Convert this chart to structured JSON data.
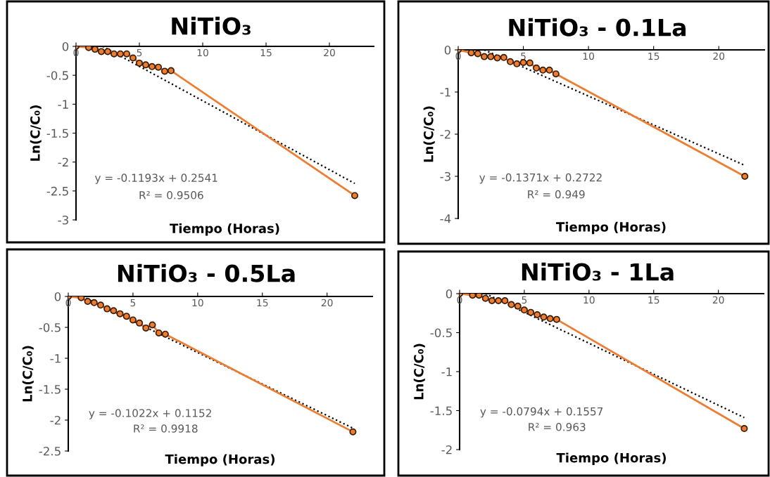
{
  "chart_data": [
    {
      "type": "line",
      "title": "NiTiO₃",
      "xlabel": "Tiempo (Horas)",
      "ylabel": "Ln(C/C₀)",
      "xlim": [
        0,
        23.5
      ],
      "xticks": [
        0,
        5,
        10,
        15,
        20
      ],
      "ylim": [
        -3,
        0
      ],
      "yticks": [
        0,
        -0.5,
        -1,
        -1.5,
        -2,
        -2.5,
        -3
      ],
      "grid": false,
      "legend": false,
      "annotations": [
        "y = -0.1193x + 0.2541",
        "R² = 0.9506"
      ],
      "series": [
        {
          "color": "#ed7d31",
          "marker": "circle",
          "line_style": "solid",
          "x": [
            0,
            1,
            1.5,
            2,
            2.5,
            3,
            3.5,
            4,
            4.5,
            5,
            5.5,
            6,
            6.5,
            7,
            7.5,
            22
          ],
          "values": [
            0,
            -0.02,
            -0.05,
            -0.09,
            -0.09,
            -0.13,
            -0.13,
            -0.13,
            -0.2,
            -0.29,
            -0.32,
            -0.35,
            -0.36,
            -0.43,
            -0.42,
            -2.58
          ]
        },
        {
          "color": "#000000",
          "marker": "none",
          "line_style": "dotted",
          "x": [
            2.1,
            22
          ],
          "values": [
            0,
            -2.37
          ]
        }
      ]
    },
    {
      "type": "line",
      "title": "NiTiO₃ - 0.1La",
      "xlabel": "Tiempo (Horas)",
      "ylabel": "Ln(C/C₀)",
      "xlim": [
        0,
        23.5
      ],
      "xticks": [
        0,
        5,
        10,
        15,
        20
      ],
      "ylim": [
        -4,
        0
      ],
      "yticks": [
        0,
        -1,
        -2,
        -3,
        -4
      ],
      "grid": false,
      "legend": false,
      "annotations": [
        "y = -0.1371x + 0.2722",
        "R² = 0.949"
      ],
      "series": [
        {
          "color": "#ed7d31",
          "marker": "circle",
          "line_style": "solid",
          "x": [
            0,
            1,
            1.5,
            2,
            2.5,
            3,
            3.5,
            4,
            4.5,
            5,
            5.5,
            6,
            6.5,
            7,
            7.5,
            22
          ],
          "values": [
            0,
            -0.07,
            -0.09,
            -0.16,
            -0.16,
            -0.19,
            -0.18,
            -0.28,
            -0.33,
            -0.3,
            -0.31,
            -0.43,
            -0.48,
            -0.48,
            -0.57,
            -3.0
          ]
        },
        {
          "color": "#000000",
          "marker": "none",
          "line_style": "dotted",
          "x": [
            2,
            22
          ],
          "values": [
            0,
            -2.74
          ]
        }
      ]
    },
    {
      "type": "line",
      "title": "NiTiO₃ - 0.5La",
      "xlabel": "Tiempo (Horas)",
      "ylabel": "Ln(C/C₀)",
      "xlim": [
        0,
        23.5
      ],
      "xticks": [
        0,
        5,
        10,
        15,
        20
      ],
      "ylim": [
        -2.5,
        0
      ],
      "yticks": [
        0,
        -0.5,
        -1,
        -1.5,
        -2,
        -2.5
      ],
      "grid": false,
      "legend": false,
      "annotations": [
        "y = -0.1022x + 0.1152",
        "R² = 0.9918"
      ],
      "series": [
        {
          "color": "#ed7d31",
          "marker": "circle",
          "line_style": "solid",
          "x": [
            0,
            1,
            1.5,
            2,
            2.5,
            3,
            3.5,
            4,
            4.5,
            5,
            5.5,
            6,
            6.5,
            7,
            7.5,
            22
          ],
          "values": [
            0,
            -0.02,
            -0.08,
            -0.1,
            -0.14,
            -0.2,
            -0.23,
            -0.28,
            -0.32,
            -0.38,
            -0.43,
            -0.51,
            -0.46,
            -0.59,
            -0.61,
            -2.19
          ]
        },
        {
          "color": "#000000",
          "marker": "none",
          "line_style": "dotted",
          "x": [
            1.1,
            22
          ],
          "values": [
            0,
            -2.13
          ]
        }
      ]
    },
    {
      "type": "line",
      "title": "NiTiO₃ - 1La",
      "xlabel": "Tiempo (Horas)",
      "ylabel": "Ln(C/C₀)",
      "xlim": [
        0,
        23.5
      ],
      "xticks": [
        0,
        5,
        10,
        15,
        20
      ],
      "ylim": [
        -2,
        0
      ],
      "yticks": [
        0,
        -0.5,
        -1,
        -1.5,
        -2
      ],
      "grid": false,
      "legend": false,
      "annotations": [
        "y = -0.0794x + 0.1557",
        "R² = 0.963"
      ],
      "series": [
        {
          "color": "#ed7d31",
          "marker": "circle",
          "line_style": "solid",
          "x": [
            0,
            1,
            1.5,
            2,
            2.5,
            3,
            3.5,
            4,
            4.5,
            5,
            5.5,
            6,
            6.5,
            7,
            7.5,
            22
          ],
          "values": [
            0,
            -0.02,
            -0.02,
            -0.06,
            -0.09,
            -0.09,
            -0.09,
            -0.14,
            -0.16,
            -0.21,
            -0.24,
            -0.27,
            -0.3,
            -0.32,
            -0.33,
            -1.73
          ]
        },
        {
          "color": "#000000",
          "marker": "none",
          "line_style": "dotted",
          "x": [
            2,
            22
          ],
          "values": [
            0,
            -1.59
          ]
        }
      ]
    }
  ]
}
